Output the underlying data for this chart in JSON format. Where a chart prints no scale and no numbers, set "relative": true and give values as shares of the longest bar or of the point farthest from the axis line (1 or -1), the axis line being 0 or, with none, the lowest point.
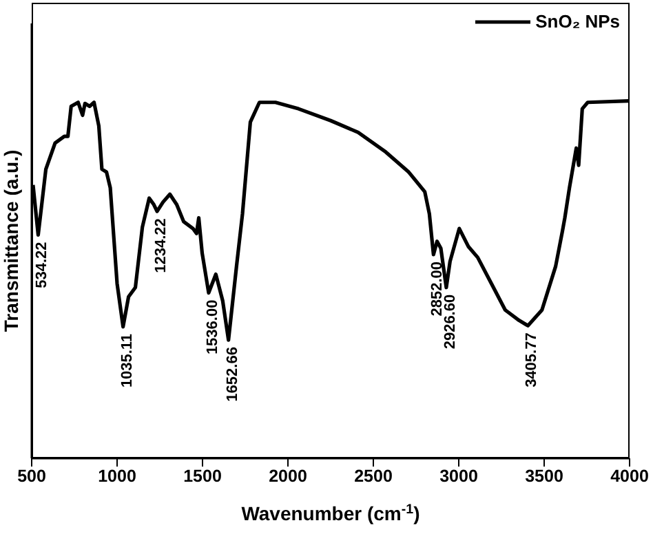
{
  "chart_data": {
    "type": "line",
    "xlabel": "Wavenumber (cm$^{-1}$)",
    "ylabel": "Transmittance (a.u.)",
    "relative": true,
    "xlim": [
      500,
      4000
    ],
    "xticks": [
      500,
      1000,
      1500,
      2000,
      2500,
      3000,
      3500,
      4000
    ],
    "legend": "top right",
    "grid": false,
    "marker": "none",
    "line_style": "solid",
    "series": [
      {
        "name": "SnO₂ NPs",
        "color": "#000000",
        "x": [
          508,
          538,
          583,
          637,
          691,
          712,
          731,
          772,
          798,
          812,
          839,
          865,
          893,
          911,
          938,
          960,
          1000,
          1035,
          1067,
          1107,
          1148,
          1188,
          1215,
          1234,
          1269,
          1309,
          1349,
          1390,
          1444,
          1465,
          1478,
          1498,
          1536,
          1578,
          1618,
          1652,
          1699,
          1734,
          1780,
          1833,
          1927,
          2062,
          2250,
          2411,
          2573,
          2707,
          2801,
          2828,
          2852,
          2873,
          2895,
          2927,
          2949,
          3003,
          3057,
          3111,
          3191,
          3272,
          3353,
          3405,
          3487,
          3567,
          3607,
          3621,
          3648,
          3688,
          3702,
          3723,
          3755,
          3997
        ],
        "values": [
          0.765,
          0.625,
          0.809,
          0.882,
          0.901,
          0.901,
          0.985,
          0.996,
          0.96,
          0.993,
          0.985,
          0.996,
          0.93,
          0.809,
          0.801,
          0.757,
          0.489,
          0.368,
          0.452,
          0.478,
          0.647,
          0.728,
          0.71,
          0.691,
          0.717,
          0.739,
          0.71,
          0.662,
          0.643,
          0.629,
          0.673,
          0.574,
          0.463,
          0.515,
          0.441,
          0.331,
          0.537,
          0.684,
          0.941,
          0.996,
          0.996,
          0.978,
          0.945,
          0.912,
          0.857,
          0.801,
          0.746,
          0.684,
          0.57,
          0.607,
          0.588,
          0.478,
          0.551,
          0.643,
          0.592,
          0.562,
          0.489,
          0.415,
          0.386,
          0.371,
          0.415,
          0.537,
          0.636,
          0.673,
          0.757,
          0.868,
          0.82,
          0.978,
          0.996,
          1
        ]
      }
    ],
    "annotations": [
      {
        "text": "534.22",
        "x": 538,
        "y": 0.625
      },
      {
        "text": "1035.11",
        "x": 1035,
        "y": 0.368
      },
      {
        "text": "1234.22",
        "x": 1234,
        "y": 0.691
      },
      {
        "text": "1536.00",
        "x": 1536,
        "y": 0.463
      },
      {
        "text": "1652.66",
        "x": 1652,
        "y": 0.331
      },
      {
        "text": "2852.00",
        "x": 2852,
        "y": 0.57
      },
      {
        "text": "2926.60",
        "x": 2927,
        "y": 0.478
      },
      {
        "text": "3405.77",
        "x": 3405,
        "y": 0.371
      }
    ]
  }
}
